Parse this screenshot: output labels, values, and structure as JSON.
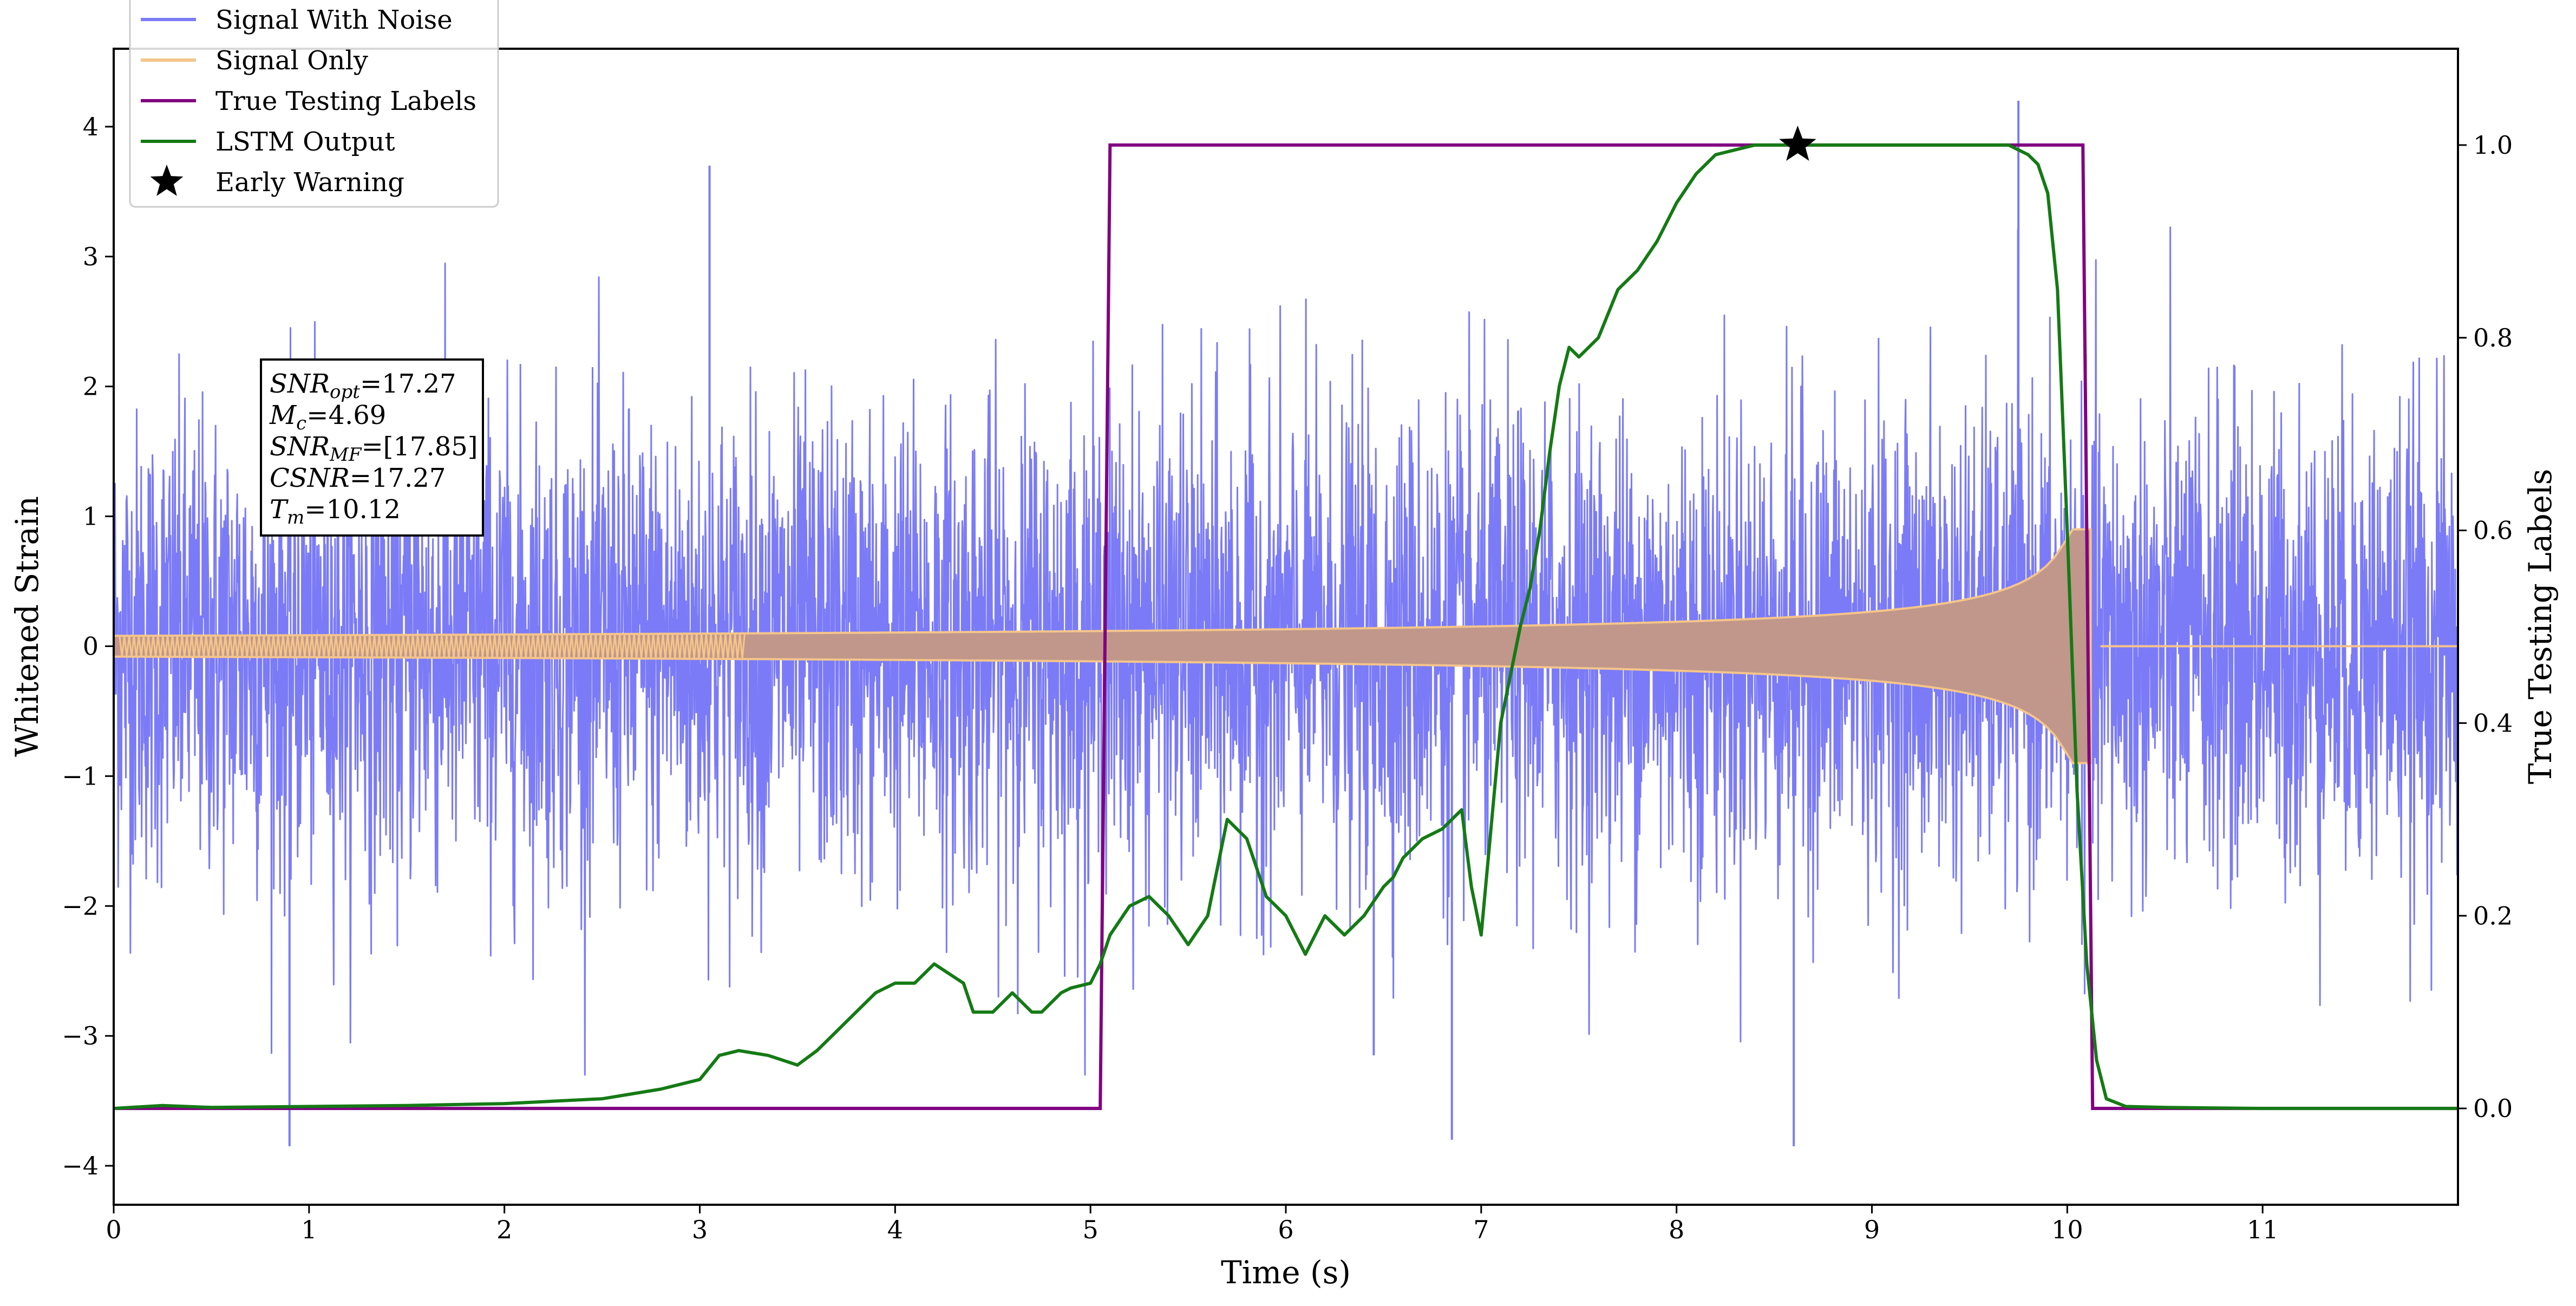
{
  "chart_data": {
    "type": "line",
    "title": "",
    "xlabel": "Time (s)",
    "ylabel": "Whitened Strain",
    "y2label": "True Testing Labels",
    "xlim": [
      0,
      12.0
    ],
    "ylim": [
      -4.3,
      4.6
    ],
    "y2lim": [
      -0.1,
      1.1
    ],
    "xticks": [
      0,
      1,
      2,
      3,
      4,
      5,
      6,
      7,
      8,
      9,
      10,
      11
    ],
    "yticks": [
      -4,
      -3,
      -2,
      -1,
      0,
      1,
      2,
      3,
      4
    ],
    "y2ticks": [
      0.0,
      0.2,
      0.4,
      0.6,
      0.8,
      1.0
    ],
    "grid": false,
    "legend_position": "top-left",
    "colors": {
      "noise": "#7b7bf7",
      "signal": "#f5c58a",
      "signal_overlap": "#c0978a",
      "labels": "#800080",
      "lstm": "#157a15",
      "warning": "#000000"
    },
    "legend": [
      {
        "label": "Signal With Noise",
        "kind": "line",
        "color": "#7b7bf7"
      },
      {
        "label": "Signal Only",
        "kind": "line",
        "color": "#f5c58a"
      },
      {
        "label": "True Testing Labels",
        "kind": "line",
        "color": "#800080"
      },
      {
        "label": "LSTM Output",
        "kind": "line",
        "color": "#157a15"
      },
      {
        "label": "Early Warning",
        "kind": "star",
        "color": "#000000"
      }
    ],
    "stats": [
      {
        "name": "SNR",
        "sub": "opt",
        "value": "=17.27"
      },
      {
        "name": "M",
        "sub": "c",
        "value": "=4.69"
      },
      {
        "name": "SNR",
        "sub": "MF",
        "value": "=[17.85]"
      },
      {
        "name": "CSNR",
        "sub": "",
        "value": "=17.27"
      },
      {
        "name": "T",
        "sub": "m",
        "value": "=10.12"
      }
    ],
    "series": [
      {
        "name": "Signal With Noise",
        "axis": "left",
        "description": "whitened noisy strain, approx. zero-mean with std ~0.9 and spikes to about +4.2 / -3.9",
        "std": 0.9,
        "spikes": [
          [
            0.9,
            -3.85
          ],
          [
            3.05,
            3.7
          ],
          [
            6.45,
            -3.15
          ],
          [
            6.85,
            -3.8
          ],
          [
            8.6,
            -3.85
          ],
          [
            9.75,
            4.2
          ]
        ]
      },
      {
        "name": "Signal Only",
        "axis": "left",
        "description": "inspiral chirp, amplitude grows toward merger and drops to zero at merger",
        "amplitude_at_start": 0.08,
        "amplitude_at_merger": 0.9,
        "merger_time": 10.12
      },
      {
        "name": "True Testing Labels",
        "axis": "right",
        "x": [
          0,
          5.05,
          5.1,
          10.08,
          10.13,
          12.0
        ],
        "y": [
          0,
          0,
          1,
          1,
          0,
          0
        ]
      },
      {
        "name": "LSTM Output",
        "axis": "right",
        "x": [
          0,
          0.25,
          0.5,
          1.0,
          1.5,
          2.0,
          2.5,
          2.8,
          3.0,
          3.1,
          3.2,
          3.35,
          3.5,
          3.6,
          3.7,
          3.8,
          3.9,
          4.0,
          4.1,
          4.2,
          4.35,
          4.4,
          4.5,
          4.6,
          4.7,
          4.75,
          4.85,
          4.9,
          5.0,
          5.05,
          5.1,
          5.2,
          5.3,
          5.4,
          5.5,
          5.6,
          5.7,
          5.8,
          5.9,
          6.0,
          6.1,
          6.2,
          6.3,
          6.4,
          6.5,
          6.55,
          6.6,
          6.7,
          6.8,
          6.9,
          6.95,
          7.0,
          7.1,
          7.2,
          7.25,
          7.3,
          7.35,
          7.4,
          7.45,
          7.5,
          7.6,
          7.7,
          7.8,
          7.9,
          8.0,
          8.1,
          8.2,
          8.3,
          8.4,
          8.6,
          8.8,
          9.0,
          9.5,
          9.7,
          9.8,
          9.85,
          9.9,
          9.95,
          10.0,
          10.05,
          10.1,
          10.15,
          10.2,
          10.3,
          10.5,
          11.0,
          12.0
        ],
        "y": [
          0,
          0.003,
          0.001,
          0.002,
          0.003,
          0.005,
          0.01,
          0.02,
          0.03,
          0.055,
          0.06,
          0.055,
          0.045,
          0.06,
          0.08,
          0.1,
          0.12,
          0.13,
          0.13,
          0.15,
          0.13,
          0.1,
          0.1,
          0.12,
          0.1,
          0.1,
          0.12,
          0.125,
          0.13,
          0.15,
          0.18,
          0.21,
          0.22,
          0.2,
          0.17,
          0.2,
          0.3,
          0.28,
          0.22,
          0.2,
          0.16,
          0.2,
          0.18,
          0.2,
          0.23,
          0.24,
          0.26,
          0.28,
          0.29,
          0.31,
          0.23,
          0.18,
          0.4,
          0.5,
          0.54,
          0.6,
          0.68,
          0.75,
          0.79,
          0.78,
          0.8,
          0.85,
          0.87,
          0.9,
          0.94,
          0.97,
          0.99,
          0.995,
          1.0,
          1.0,
          1.0,
          1.0,
          1.0,
          1.0,
          0.99,
          0.98,
          0.95,
          0.85,
          0.6,
          0.33,
          0.15,
          0.05,
          0.01,
          0.002,
          0.001,
          0.0,
          0.0
        ]
      },
      {
        "name": "Early Warning",
        "axis": "right",
        "kind": "marker",
        "x": [
          8.62
        ],
        "y": [
          1.0
        ]
      }
    ]
  }
}
